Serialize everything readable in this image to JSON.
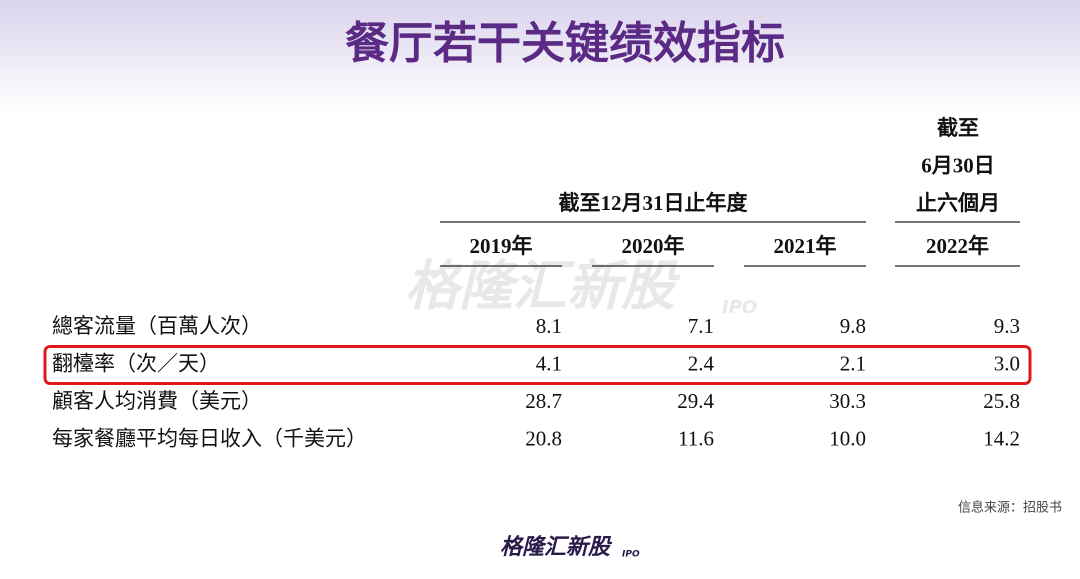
{
  "title": "餐厅若干关键绩效指标",
  "table": {
    "period_header": "截至12月31日止年度",
    "interim_header": [
      "截至",
      "6月30日",
      "止六個月"
    ],
    "columns": [
      "2019年",
      "2020年",
      "2021年",
      "2022年"
    ],
    "rows": [
      {
        "label": "總客流量（百萬人次）",
        "values": [
          "8.1",
          "7.1",
          "9.8",
          "9.3"
        ]
      },
      {
        "label": "翻檯率（次／天）",
        "values": [
          "4.1",
          "2.4",
          "2.1",
          "3.0"
        ]
      },
      {
        "label": "顧客人均消費（美元）",
        "values": [
          "28.7",
          "29.4",
          "30.3",
          "25.8"
        ]
      },
      {
        "label": "每家餐廳平均每日收入（千美元）",
        "values": [
          "20.8",
          "11.6",
          "10.0",
          "14.2"
        ]
      }
    ],
    "highlighted_row": 1
  },
  "source": "信息来源：招股书",
  "watermark": {
    "brand": "格隆汇新股",
    "tag": "IPO"
  },
  "logo": {
    "brand": "格隆汇新股",
    "tag": "IPO"
  }
}
